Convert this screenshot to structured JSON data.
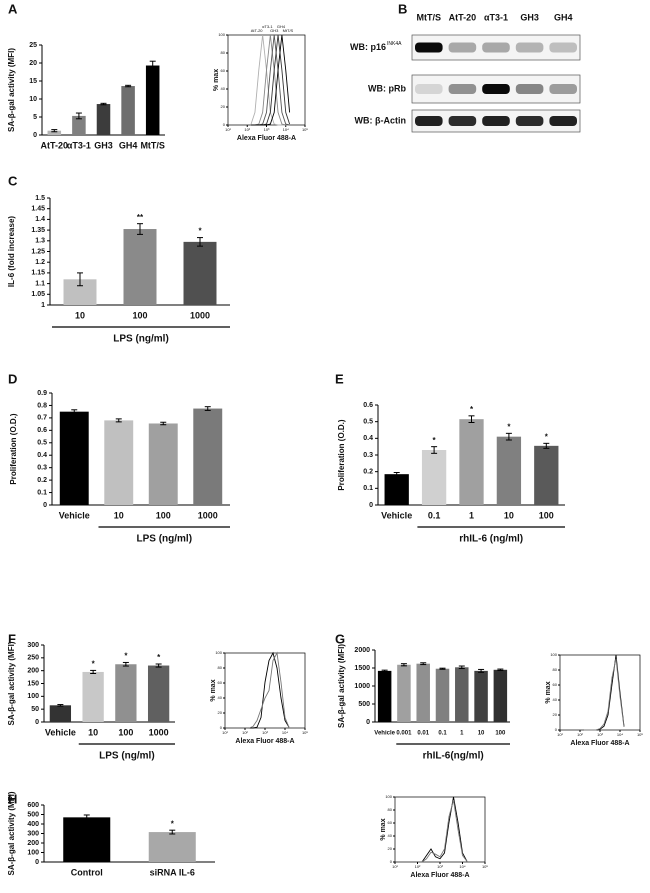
{
  "chart_data": [
    {
      "type": "bar",
      "panel": "A",
      "ylabel": "SA-β-gal activity (MFI)",
      "categories": [
        "AtT-20",
        "αT3-1",
        "GH3",
        "GH4",
        "MtT/S"
      ],
      "values": [
        1.2,
        5.3,
        8.6,
        13.6,
        19.3
      ],
      "errors": [
        0.3,
        0.8,
        0.2,
        0.2,
        1.2
      ],
      "colors": [
        "#b4b4b4",
        "#808080",
        "#3c3c3c",
        "#6e6e6e",
        "#000000"
      ],
      "ylim": [
        0,
        25
      ],
      "yticks": [
        0,
        5,
        10,
        15,
        20,
        25
      ]
    },
    {
      "type": "line",
      "xscale": "log",
      "ylabel": "% max",
      "xlabel": "Alexa Fluor 488-A",
      "x": [
        158,
        251,
        398,
        631,
        1000,
        1585,
        2512,
        3981,
        6310,
        10000,
        15849
      ],
      "xlim": [
        10,
        100000
      ],
      "xticks": [
        {
          "value": 10,
          "label": "10¹"
        },
        {
          "value": 100,
          "label": "10²"
        },
        {
          "value": 1000,
          "label": "10³"
        },
        {
          "value": 10000,
          "label": "10⁴"
        },
        {
          "value": 100000,
          "label": "10⁵"
        }
      ],
      "ylim": [
        0,
        100
      ],
      "yticks": [
        0,
        20,
        40,
        60,
        80,
        100
      ],
      "series": [
        {
          "name": "AtT-20",
          "color": "#b0b0b0",
          "values": [
            1,
            14,
            61,
            100,
            61,
            14,
            1,
            0,
            0,
            0,
            0
          ]
        },
        {
          "name": "αT3-1",
          "color": "#888888",
          "values": [
            0,
            0,
            1,
            14,
            61,
            100,
            61,
            14,
            1,
            0,
            0
          ]
        },
        {
          "name": "GH3",
          "color": "#555555",
          "values": [
            0,
            0,
            0,
            1,
            14,
            61,
            100,
            61,
            14,
            1,
            0
          ]
        },
        {
          "name": "GH4",
          "color": "#333333",
          "values": [
            0,
            0,
            0,
            0,
            1,
            14,
            61,
            100,
            61,
            14,
            1
          ]
        },
        {
          "name": "MtT/S",
          "color": "#000000",
          "values": [
            0,
            0,
            0,
            0,
            0,
            1,
            14,
            61,
            100,
            61,
            14
          ]
        }
      ]
    },
    {
      "type": "blot",
      "panel": "B",
      "lanes": [
        "MtT/S",
        "AtT-20",
        "αT3-1",
        "GH3",
        "GH4"
      ],
      "rows": [
        {
          "label": "WB: p16",
          "superscript": "INK4A",
          "intensity": [
            1,
            0.3,
            0.3,
            0.25,
            0.2
          ]
        },
        {
          "label": "WB: pRb",
          "intensity": [
            0.1,
            0.4,
            1,
            0.45,
            0.35
          ]
        },
        {
          "label": "WB: β-Actin",
          "intensity": [
            0.9,
            0.85,
            0.9,
            0.85,
            0.9
          ]
        }
      ]
    },
    {
      "type": "bar",
      "panel": "C",
      "ylabel": "IL-6 (fold increase)",
      "categories": [
        "10",
        "100",
        "1000"
      ],
      "values": [
        1.12,
        1.355,
        1.295
      ],
      "errors": [
        0.03,
        0.025,
        0.02
      ],
      "stars": [
        null,
        "**",
        "*"
      ],
      "group_label": "LPS (ng/ml)",
      "colors": [
        "#c0c0c0",
        "#8a8a8a",
        "#505050"
      ],
      "ylim": [
        1,
        1.5
      ],
      "yticks": [
        1,
        1.05,
        1.1,
        1.15,
        1.2,
        1.25,
        1.3,
        1.35,
        1.4,
        1.45,
        1.5
      ]
    },
    {
      "type": "bar",
      "panel": "D",
      "ylabel": "Proliferation (O.D.)",
      "categories": [
        "Vehicle",
        "10",
        "100",
        "1000"
      ],
      "values": [
        0.75,
        0.68,
        0.655,
        0.775
      ],
      "errors": [
        0.015,
        0.012,
        0.01,
        0.015
      ],
      "group_label": "LPS (ng/ml)",
      "colors": [
        "#000000",
        "#c0c0c0",
        "#a0a0a0",
        "#7a7a7a"
      ],
      "ylim": [
        0,
        0.9
      ],
      "yticks": [
        0,
        0.1,
        0.2,
        0.3,
        0.4,
        0.5,
        0.6,
        0.7,
        0.8,
        0.9
      ]
    },
    {
      "type": "bar",
      "panel": "E",
      "ylabel": "Proliferation (O.D.)",
      "categories": [
        "Vehicle",
        "0.1",
        "1",
        "10",
        "100"
      ],
      "values": [
        0.185,
        0.33,
        0.515,
        0.41,
        0.355
      ],
      "errors": [
        0.01,
        0.02,
        0.02,
        0.02,
        0.015
      ],
      "stars": [
        null,
        "*",
        "*",
        "*",
        "*"
      ],
      "group_label": "rhIL-6 (ng/ml)",
      "colors": [
        "#000000",
        "#d0d0d0",
        "#a0a0a0",
        "#808080",
        "#5a5a5a"
      ],
      "ylim": [
        0,
        0.6
      ],
      "yticks": [
        0,
        0.1,
        0.2,
        0.3,
        0.4,
        0.5,
        0.6
      ]
    },
    {
      "type": "bar",
      "panel": "F",
      "ylabel": "SA-β-gal activity (MFI)",
      "categories": [
        "Vehicle",
        "10",
        "100",
        "1000"
      ],
      "values": [
        65,
        195,
        225,
        220
      ],
      "errors": [
        3,
        6,
        7,
        6
      ],
      "stars": [
        null,
        "*",
        "*",
        "*"
      ],
      "group_label": "LPS (ng/ml)",
      "colors": [
        "#333333",
        "#c8c8c8",
        "#909090",
        "#606060"
      ],
      "ylim": [
        0,
        300
      ],
      "yticks": [
        0,
        50,
        100,
        150,
        200,
        250,
        300
      ]
    },
    {
      "type": "line",
      "xscale": "log",
      "ylabel": "% max",
      "xlabel": "Alexa Fluor 488-A",
      "x": [
        158,
        251,
        398,
        631,
        1000,
        1585,
        2512,
        3981,
        6310,
        10000,
        15849
      ],
      "xlim": [
        10,
        100000
      ],
      "xticks": [
        {
          "value": 10,
          "label": "10¹"
        },
        {
          "value": 100,
          "label": "10²"
        },
        {
          "value": 1000,
          "label": "10³"
        },
        {
          "value": 10000,
          "label": "10⁴"
        },
        {
          "value": 100000,
          "label": "10⁵"
        }
      ],
      "ylim": [
        0,
        100
      ],
      "yticks": [
        0,
        20,
        40,
        60,
        80,
        100
      ],
      "series": [
        {
          "color": "#000000",
          "values": [
            0,
            0,
            1,
            14,
            61,
            90,
            100,
            80,
            40,
            10,
            1
          ]
        },
        {
          "color": "#777777",
          "values": [
            0,
            2,
            10,
            25,
            40,
            50,
            90,
            100,
            61,
            14,
            1
          ]
        }
      ]
    },
    {
      "type": "bar",
      "panel": "G",
      "ylabel": "SA-β-gal activity (MFI)",
      "categories": [
        "Vehicle",
        "0.001",
        "0.01",
        "0.1",
        "1",
        "10",
        "100"
      ],
      "values": [
        1420,
        1590,
        1620,
        1480,
        1520,
        1420,
        1450
      ],
      "errors": [
        20,
        30,
        25,
        15,
        35,
        40,
        20
      ],
      "group_label": "rhIL-6(ng/ml)",
      "colors": [
        "#000000",
        "#a0a0a0",
        "#909090",
        "#808080",
        "#606060",
        "#404040",
        "#303030"
      ],
      "ylim": [
        0,
        2000
      ],
      "yticks": [
        0,
        500,
        1000,
        1500,
        2000
      ]
    },
    {
      "type": "line",
      "xscale": "log",
      "ylabel": "% max",
      "xlabel": "Alexa Fluor 488-A",
      "x": [
        158,
        251,
        398,
        631,
        1000,
        1585,
        2512,
        3981,
        6310,
        10000,
        15849
      ],
      "xlim": [
        10,
        100000
      ],
      "xticks": [
        {
          "value": 10,
          "label": "10¹"
        },
        {
          "value": 100,
          "label": "10²"
        },
        {
          "value": 1000,
          "label": "10³"
        },
        {
          "value": 10000,
          "label": "10⁴"
        },
        {
          "value": 100000,
          "label": "10⁵"
        }
      ],
      "ylim": [
        0,
        100
      ],
      "yticks": [
        0,
        20,
        40,
        60,
        80,
        100
      ],
      "series": [
        {
          "color": "#000000",
          "values": [
            0,
            0,
            0,
            0,
            1,
            5,
            20,
            61,
            100,
            50,
            5
          ]
        },
        {
          "color": "#777777",
          "values": [
            0,
            0,
            0,
            0,
            2,
            8,
            25,
            70,
            95,
            45,
            4
          ]
        }
      ]
    },
    {
      "type": "bar",
      "panel": "H",
      "ylabel": "SA-β-gal activity (MFI)",
      "categories": [
        "Control",
        "siRNA IL-6"
      ],
      "values": [
        470,
        315
      ],
      "errors": [
        25,
        20
      ],
      "stars": [
        null,
        "*"
      ],
      "colors": [
        "#000000",
        "#a8a8a8"
      ],
      "ylim": [
        0,
        600
      ],
      "yticks": [
        0,
        100,
        200,
        300,
        400,
        500,
        600
      ]
    },
    {
      "type": "line",
      "xscale": "log",
      "ylabel": "% max",
      "xlabel": "Alexa Fluor 488-A",
      "x": [
        158,
        251,
        398,
        631,
        1000,
        1585,
        2512,
        3981,
        6310,
        10000,
        15849
      ],
      "xlim": [
        10,
        100000
      ],
      "xticks": [
        {
          "value": 10,
          "label": "10¹"
        },
        {
          "value": 100,
          "label": "10²"
        },
        {
          "value": 1000,
          "label": "10³"
        },
        {
          "value": 10000,
          "label": "10⁴"
        },
        {
          "value": 100000,
          "label": "10⁵"
        }
      ],
      "ylim": [
        0,
        100
      ],
      "yticks": [
        0,
        20,
        40,
        60,
        80,
        100
      ],
      "series": [
        {
          "color": "#000000",
          "values": [
            0,
            10,
            20,
            8,
            5,
            14,
            61,
            100,
            61,
            14,
            1
          ]
        },
        {
          "color": "#777777",
          "values": [
            0,
            5,
            15,
            12,
            8,
            20,
            70,
            95,
            50,
            10,
            1
          ]
        }
      ]
    }
  ]
}
